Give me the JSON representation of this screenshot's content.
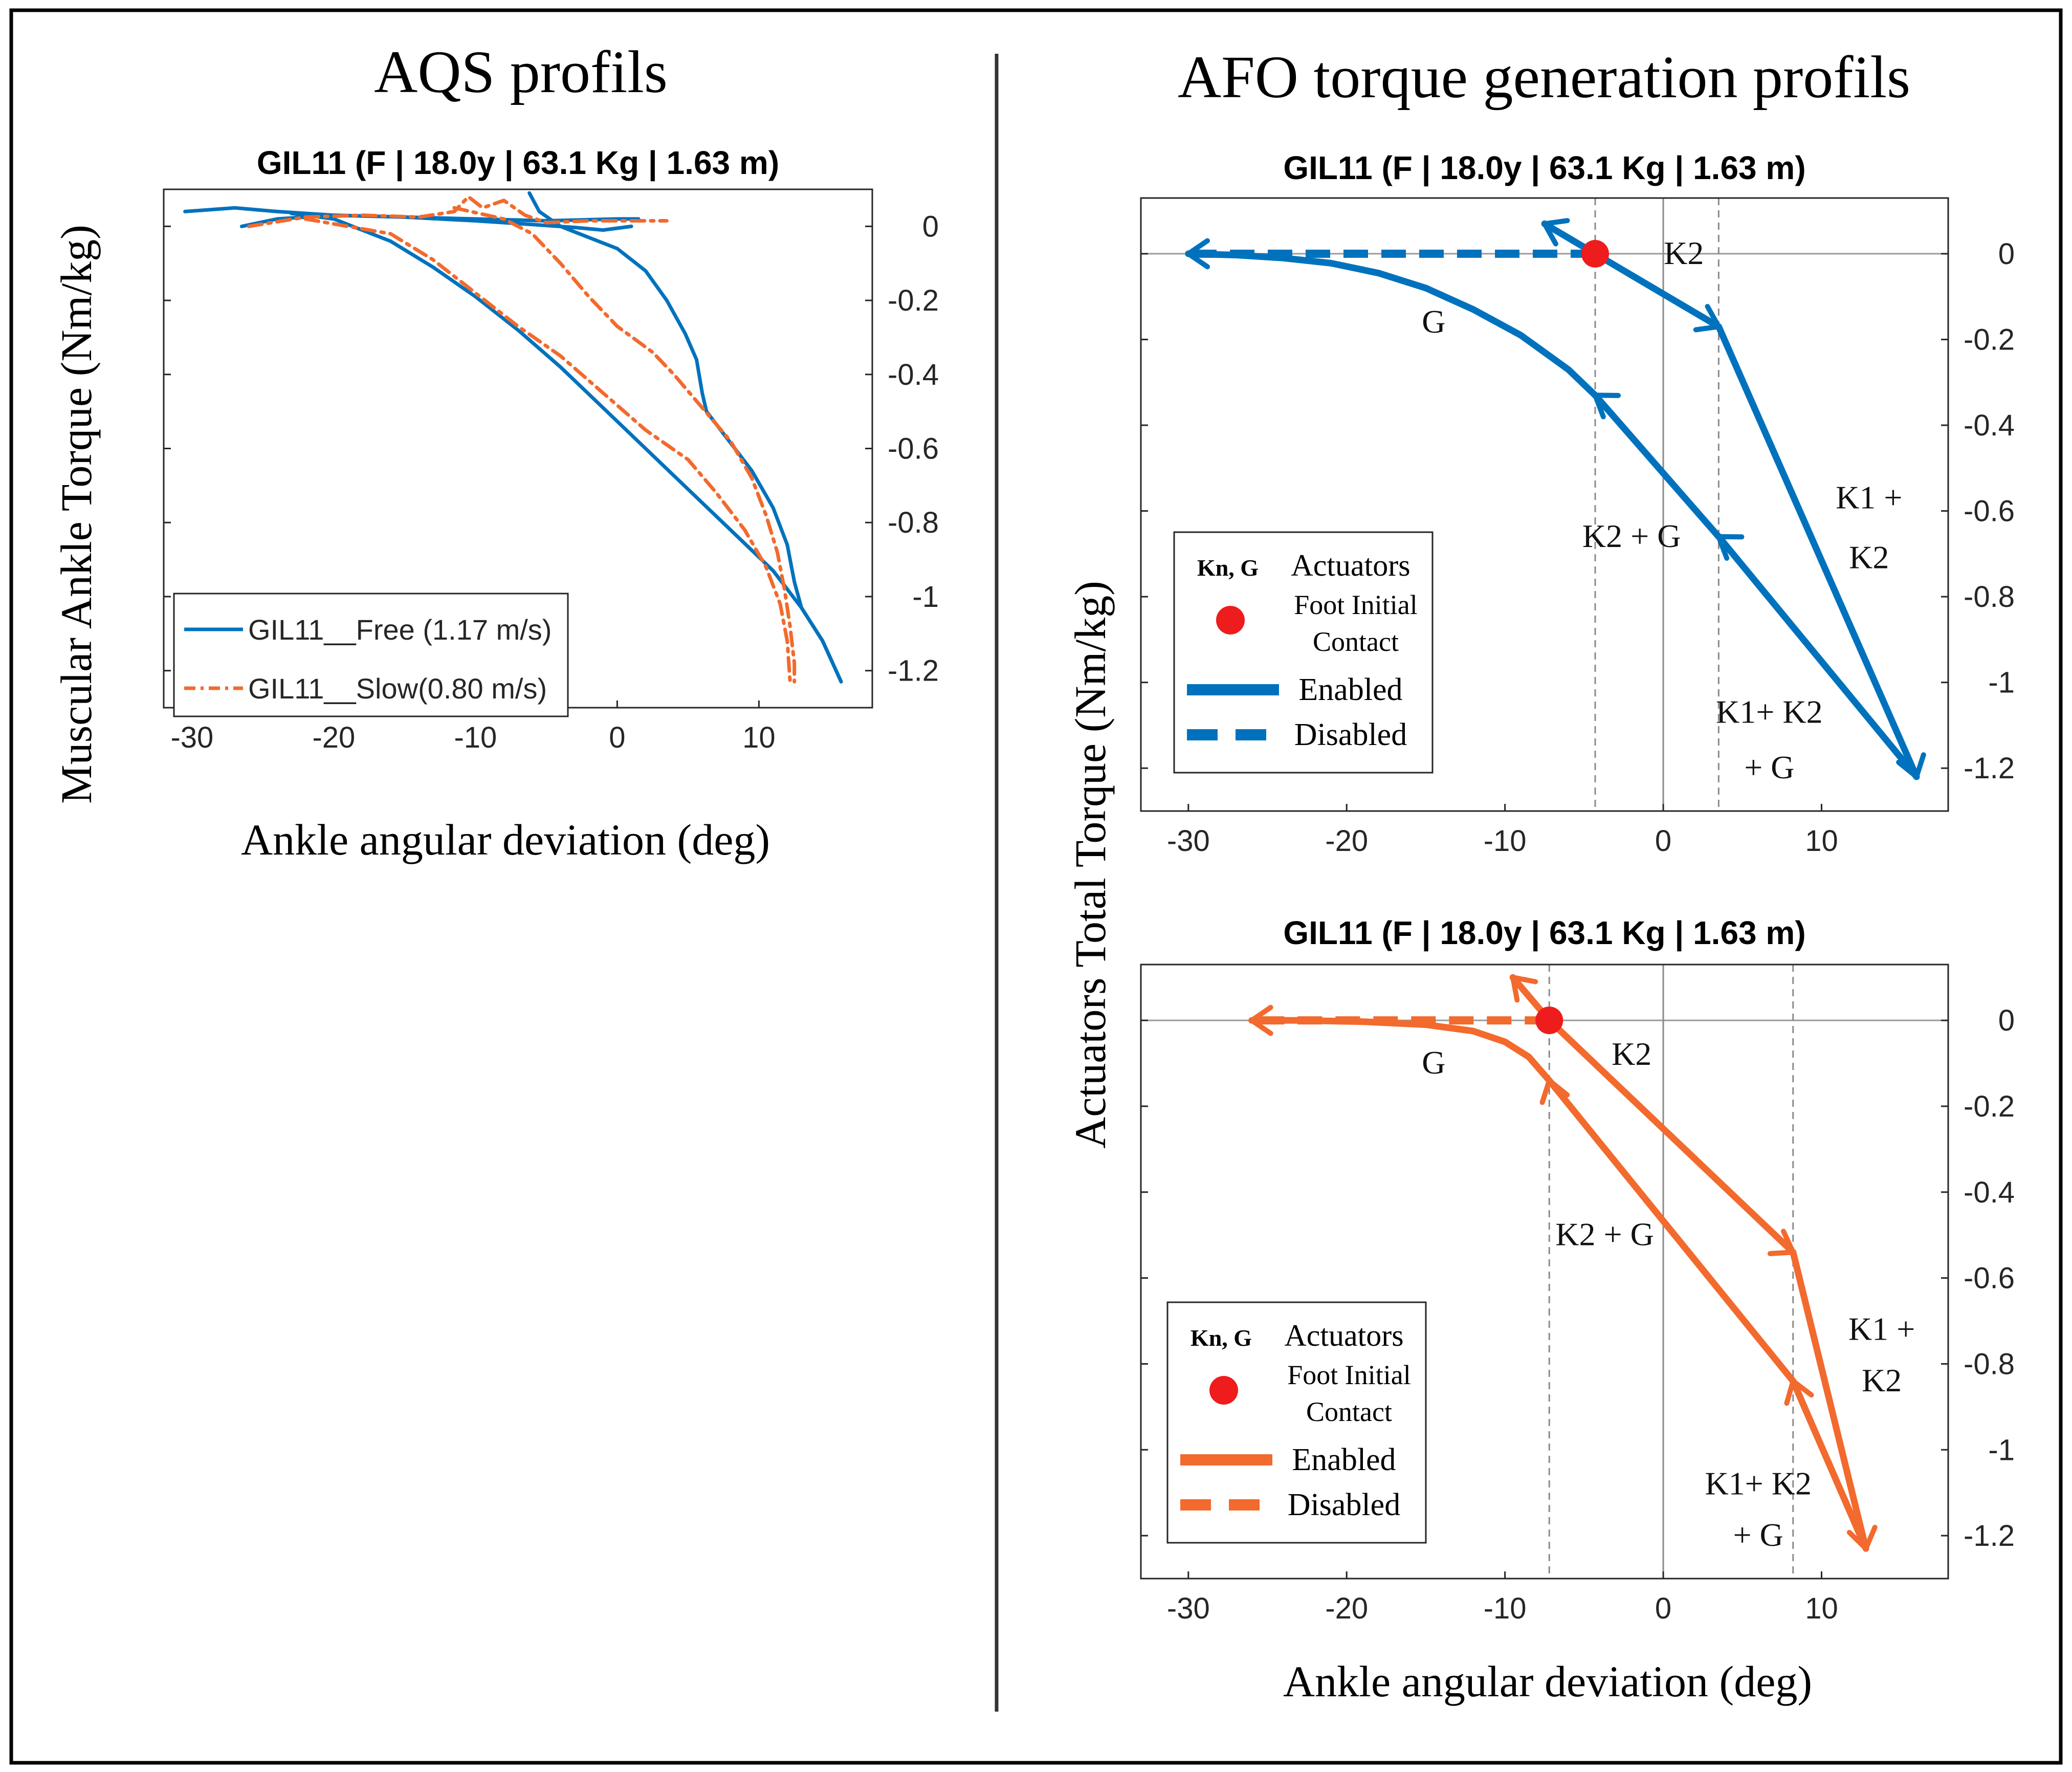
{
  "figure": {
    "left_heading": "AQS profils",
    "right_heading": "AFO torque generation profils",
    "left_ylabel": "Muscular Ankle Torque (Nm/kg)",
    "right_ylabel": "Actuators Total Torque (Nm/kg)",
    "left_xlabel": "Ankle angular deviation (deg)",
    "right_xlabel": "Ankle angular deviation (deg)"
  },
  "chart_data": [
    {
      "id": "aqs",
      "type": "line",
      "title": "GIL11 (F | 18.0y | 63.1 Kg | 1.63 m)",
      "xlabel": "Ankle angular deviation (deg)",
      "ylabel": "Muscular Ankle Torque (Nm/kg)",
      "xlim": [
        -32,
        18
      ],
      "ylim": [
        -1.3,
        0.1
      ],
      "xticks": [
        -30,
        -20,
        -10,
        0,
        10
      ],
      "xtick_labels": [
        "-30",
        "-20",
        "-10",
        "0",
        "10"
      ],
      "yticks": [
        0,
        -0.2,
        -0.4,
        -0.6,
        -0.8,
        -1,
        -1.2
      ],
      "ytick_labels": [
        "0",
        "-0.2",
        "-0.4",
        "-0.6",
        "-0.8",
        "-1",
        "-1.2"
      ],
      "grid": false,
      "legend_position": "bottom-left",
      "series": [
        {
          "name": "GIL11__Free (1.17 m/s)",
          "color": "#0072BD",
          "style": "solid",
          "segments": [
            [
              [
                -30.5,
                0.04
              ],
              [
                -27,
                0.05
              ],
              [
                -24,
                0.04
              ],
              [
                -20,
                0.03
              ],
              [
                -15,
                0.025
              ],
              [
                -10,
                0.02
              ],
              [
                -5,
                0.015
              ],
              [
                0,
                0.02
              ],
              [
                1.5,
                0.02
              ]
            ],
            [
              [
                -23,
                0.035
              ],
              [
                -20,
                0.02
              ],
              [
                -16,
                -0.04
              ],
              [
                -13,
                -0.11
              ],
              [
                -10,
                -0.19
              ],
              [
                -7,
                -0.28
              ],
              [
                -4,
                -0.38
              ],
              [
                -1,
                -0.49
              ],
              [
                2,
                -0.6
              ],
              [
                5,
                -0.71
              ],
              [
                8,
                -0.82
              ],
              [
                11,
                -0.93
              ],
              [
                13,
                -1.03
              ],
              [
                14.5,
                -1.12
              ],
              [
                15.8,
                -1.23
              ]
            ],
            [
              [
                -6.2,
                0.09
              ],
              [
                -5.5,
                0.04
              ],
              [
                -4,
                0.0
              ],
              [
                -2,
                -0.03
              ],
              [
                0,
                -0.06
              ],
              [
                2,
                -0.12
              ],
              [
                3.5,
                -0.2
              ],
              [
                4.8,
                -0.29
              ],
              [
                5.6,
                -0.36
              ],
              [
                6,
                -0.45
              ],
              [
                6.3,
                -0.5
              ],
              [
                7.5,
                -0.56
              ],
              [
                9.5,
                -0.66
              ],
              [
                11,
                -0.76
              ],
              [
                12,
                -0.86
              ],
              [
                12.5,
                -0.96
              ],
              [
                13,
                -1.03
              ],
              [
                14.5,
                -1.12
              ],
              [
                15.8,
                -1.23
              ]
            ],
            [
              [
                -26.5,
                0.0
              ],
              [
                -24,
                0.02
              ],
              [
                -20,
                0.03
              ],
              [
                -15,
                0.025
              ],
              [
                -10,
                0.015
              ],
              [
                -6,
                0.005
              ],
              [
                -3,
                -0.003
              ],
              [
                -1,
                -0.01
              ],
              [
                0,
                -0.005
              ],
              [
                1,
                0.0
              ]
            ]
          ]
        },
        {
          "name": "GIL11__Slow(0.80 m/s)",
          "color": "#F26A2D",
          "style": "dashdot",
          "segments": [
            [
              [
                -26,
                0.0
              ],
              [
                -22,
                0.025
              ],
              [
                -18,
                0.03
              ],
              [
                -14,
                0.025
              ],
              [
                -11.5,
                0.04
              ],
              [
                -10.5,
                0.08
              ],
              [
                -9.5,
                0.05
              ],
              [
                -8,
                0.07
              ],
              [
                -6.5,
                0.03
              ],
              [
                -5,
                0.01
              ],
              [
                -2,
                0.015
              ],
              [
                0,
                0.015
              ],
              [
                1.5,
                0.015
              ],
              [
                3.5,
                0.015
              ]
            ],
            [
              [
                -22,
                0.02
              ],
              [
                -16,
                -0.02
              ],
              [
                -13,
                -0.09
              ],
              [
                -10,
                -0.18
              ],
              [
                -7,
                -0.27
              ],
              [
                -4,
                -0.35
              ],
              [
                -1,
                -0.45
              ],
              [
                2,
                -0.55
              ],
              [
                5,
                -0.63
              ],
              [
                7,
                -0.72
              ],
              [
                9,
                -0.82
              ],
              [
                10.5,
                -0.92
              ],
              [
                11.5,
                -1.02
              ],
              [
                12,
                -1.12
              ],
              [
                12.2,
                -1.23
              ]
            ],
            [
              [
                -11.5,
                0.05
              ],
              [
                -8,
                0.02
              ],
              [
                -6,
                -0.02
              ],
              [
                -4,
                -0.1
              ],
              [
                -2,
                -0.19
              ],
              [
                0,
                -0.27
              ],
              [
                2.5,
                -0.34
              ],
              [
                4,
                -0.4
              ],
              [
                6,
                -0.49
              ],
              [
                8,
                -0.58
              ],
              [
                9.5,
                -0.68
              ],
              [
                10.5,
                -0.78
              ],
              [
                11.3,
                -0.88
              ],
              [
                11.8,
                -0.98
              ],
              [
                12.2,
                -1.08
              ],
              [
                12.5,
                -1.18
              ],
              [
                12.5,
                -1.23
              ]
            ]
          ]
        }
      ]
    },
    {
      "id": "afo_free",
      "type": "line",
      "title": "GIL11 (F | 18.0y | 63.1 Kg | 1.63 m)",
      "xlim": [
        -33,
        18
      ],
      "ylim": [
        -1.3,
        0.13
      ],
      "xticks": [
        -30,
        -20,
        -10,
        0,
        10
      ],
      "xtick_labels": [
        "-30",
        "-20",
        "-10",
        "0",
        "10"
      ],
      "yticks": [
        0,
        -0.2,
        -0.4,
        -0.6,
        -0.8,
        -1,
        -1.2
      ],
      "ytick_labels": [
        "0",
        "-0.2",
        "-0.4",
        "-0.6",
        "-0.8",
        "-1",
        "-1.2"
      ],
      "grid": false,
      "color": "#0072BD",
      "vlines": [
        -4.3,
        0,
        3.5
      ],
      "foot_contact": [
        -4.3,
        0.0
      ],
      "enabled_paths": [
        [
          [
            -4.3,
            0.0
          ],
          [
            3.5,
            -0.17
          ],
          [
            16,
            -1.22
          ],
          [
            3.5,
            -0.66
          ],
          [
            -4.3,
            -0.33
          ]
        ],
        [
          [
            -4.3,
            -0.33
          ],
          [
            -6,
            -0.27
          ],
          [
            -9,
            -0.19
          ],
          [
            -12,
            -0.13
          ],
          [
            -15,
            -0.08
          ],
          [
            -18,
            -0.045
          ],
          [
            -21,
            -0.022
          ],
          [
            -24,
            -0.01
          ],
          [
            -27,
            -0.003
          ],
          [
            -30,
            0.0
          ]
        ],
        [
          [
            -4.3,
            0.0
          ],
          [
            -7.5,
            0.07
          ]
        ]
      ],
      "disabled_path": [
        [
          -4.3,
          0.0
        ],
        [
          -30,
          0.0
        ]
      ],
      "arrows": [
        {
          "at": [
            -30,
            0.0
          ],
          "dir": [
            -1,
            0
          ]
        },
        {
          "at": [
            -7.5,
            0.07
          ],
          "dir": [
            -1,
            0.5
          ]
        },
        {
          "at": [
            3.5,
            -0.17
          ],
          "dir": [
            1,
            -0.5
          ]
        },
        {
          "at": [
            16,
            -1.22
          ],
          "dir": [
            0.3,
            -1
          ]
        },
        {
          "at": [
            3.5,
            -0.66
          ],
          "dir": [
            -1,
            0.7
          ]
        },
        {
          "at": [
            -4.3,
            -0.33
          ],
          "dir": [
            -1,
            0.7
          ]
        }
      ],
      "annotations": [
        {
          "text": "K2",
          "at": [
            1.3,
            0.0
          ]
        },
        {
          "text": "G",
          "at": [
            -14.5,
            -0.16
          ]
        },
        {
          "text": "K2 + G",
          "at": [
            -2,
            -0.66
          ]
        },
        {
          "text": "K1 +",
          "at": [
            13,
            -0.57
          ]
        },
        {
          "text": "K2",
          "at": [
            13,
            -0.71
          ]
        },
        {
          "text": "K1+ K2",
          "at": [
            6.7,
            -1.07
          ]
        },
        {
          "text": "+ G",
          "at": [
            6.7,
            -1.2
          ]
        }
      ],
      "legend": {
        "header_symbol": "Kn, G",
        "header": "Actuators",
        "contact_line1": "Foot Initial",
        "contact_line2": "Contact",
        "enabled": "Enabled",
        "disabled": "Disabled"
      }
    },
    {
      "id": "afo_slow",
      "type": "line",
      "title": "GIL11 (F | 18.0y | 63.1 Kg | 1.63 m)",
      "xlim": [
        -33,
        18
      ],
      "ylim": [
        -1.3,
        0.13
      ],
      "xticks": [
        -30,
        -20,
        -10,
        0,
        10
      ],
      "xtick_labels": [
        "-30",
        "-20",
        "-10",
        "0",
        "10"
      ],
      "yticks": [
        0,
        -0.2,
        -0.4,
        -0.6,
        -0.8,
        -1,
        -1.2
      ],
      "ytick_labels": [
        "0",
        "-0.2",
        "-0.4",
        "-0.6",
        "-0.8",
        "-1",
        "-1.2"
      ],
      "grid": false,
      "color": "#F26A2D",
      "vlines": [
        -7.2,
        0,
        8.2
      ],
      "foot_contact": [
        -7.2,
        0.0
      ],
      "enabled_paths": [
        [
          [
            -7.2,
            0.0
          ],
          [
            8.2,
            -0.54
          ],
          [
            12.8,
            -1.23
          ],
          [
            8.2,
            -0.84
          ],
          [
            -7.2,
            -0.14
          ]
        ],
        [
          [
            -7.2,
            -0.14
          ],
          [
            -8.5,
            -0.085
          ],
          [
            -10,
            -0.05
          ],
          [
            -12,
            -0.025
          ],
          [
            -15,
            -0.01
          ],
          [
            -19,
            -0.003
          ],
          [
            -23,
            0.0
          ],
          [
            -26,
            0.0
          ]
        ],
        [
          [
            -7.2,
            0.0
          ],
          [
            -9.5,
            0.1
          ]
        ]
      ],
      "disabled_path": [
        [
          -7.2,
          0.0
        ],
        [
          -26,
          0.0
        ]
      ],
      "arrows": [
        {
          "at": [
            -26,
            0.0
          ],
          "dir": [
            -1,
            0
          ]
        },
        {
          "at": [
            -9.5,
            0.1
          ],
          "dir": [
            -1,
            1
          ]
        },
        {
          "at": [
            8.2,
            -0.54
          ],
          "dir": [
            1,
            -0.6
          ]
        },
        {
          "at": [
            12.8,
            -1.23
          ],
          "dir": [
            0.2,
            -1
          ]
        },
        {
          "at": [
            8.2,
            -0.84
          ],
          "dir": [
            -0.3,
            0.9
          ]
        },
        {
          "at": [
            -7.2,
            -0.14
          ],
          "dir": [
            -0.3,
            1
          ]
        }
      ],
      "annotations": [
        {
          "text": "K2",
          "at": [
            -2,
            -0.08
          ]
        },
        {
          "text": "G",
          "at": [
            -14.5,
            -0.1
          ]
        },
        {
          "text": "K2 + G",
          "at": [
            -3.7,
            -0.5
          ]
        },
        {
          "text": "K1 +",
          "at": [
            13.8,
            -0.72
          ]
        },
        {
          "text": "K2",
          "at": [
            13.8,
            -0.84
          ]
        },
        {
          "text": "K1+ K2",
          "at": [
            6,
            -1.08
          ]
        },
        {
          "text": "+ G",
          "at": [
            6,
            -1.2
          ]
        }
      ],
      "legend": {
        "header_symbol": "Kn, G",
        "header": "Actuators",
        "contact_line1": "Foot Initial",
        "contact_line2": "Contact",
        "enabled": "Enabled",
        "disabled": "Disabled"
      }
    }
  ]
}
